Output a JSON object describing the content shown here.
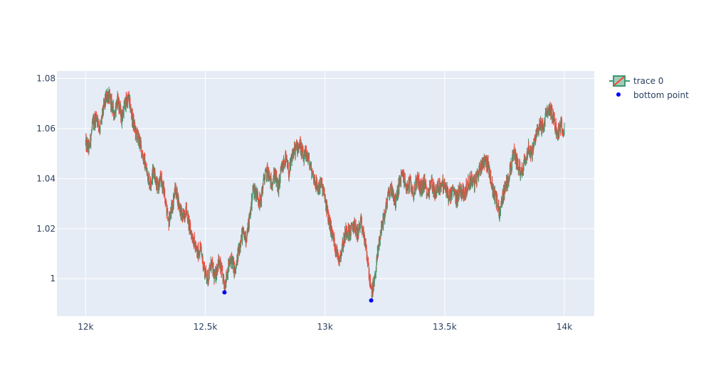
{
  "chart_data": {
    "type": "candlestick",
    "title": "",
    "xlabel": "",
    "ylabel": "",
    "xlim": [
      11880,
      14125
    ],
    "ylim": [
      0.985,
      1.083
    ],
    "x_ticks": [
      {
        "value": 12000,
        "label": "12k"
      },
      {
        "value": 12500,
        "label": "12.5k"
      },
      {
        "value": 13000,
        "label": "13k"
      },
      {
        "value": 13500,
        "label": "13.5k"
      },
      {
        "value": 14000,
        "label": "14k"
      }
    ],
    "y_ticks": [
      {
        "value": 1.0,
        "label": "1"
      },
      {
        "value": 1.02,
        "label": "1.02"
      },
      {
        "value": 1.04,
        "label": "1.04"
      },
      {
        "value": 1.06,
        "label": "1.06"
      },
      {
        "value": 1.08,
        "label": "1.08"
      }
    ],
    "grid": true,
    "legend_position": "top-right",
    "colors": {
      "plot_bg": "#e5ecf6",
      "grid": "#ffffff",
      "increasing": "#3d9970",
      "decreasing": "#ff4136",
      "bottom_point": "#0000ff",
      "text": "#2a3f5f"
    },
    "series": [
      {
        "name": "trace 0",
        "kind": "candlestick",
        "x_start": 12000,
        "x_end": 14000,
        "path": [
          [
            12000,
            1.054
          ],
          [
            12015,
            1.052
          ],
          [
            12030,
            1.062
          ],
          [
            12045,
            1.065
          ],
          [
            12060,
            1.06
          ],
          [
            12075,
            1.068
          ],
          [
            12090,
            1.074
          ],
          [
            12105,
            1.071
          ],
          [
            12120,
            1.066
          ],
          [
            12135,
            1.072
          ],
          [
            12150,
            1.064
          ],
          [
            12165,
            1.07
          ],
          [
            12180,
            1.072
          ],
          [
            12195,
            1.064
          ],
          [
            12210,
            1.058
          ],
          [
            12225,
            1.055
          ],
          [
            12240,
            1.049
          ],
          [
            12255,
            1.043
          ],
          [
            12270,
            1.038
          ],
          [
            12285,
            1.044
          ],
          [
            12300,
            1.036
          ],
          [
            12315,
            1.04
          ],
          [
            12330,
            1.034
          ],
          [
            12345,
            1.022
          ],
          [
            12360,
            1.028
          ],
          [
            12375,
            1.036
          ],
          [
            12390,
            1.03
          ],
          [
            12405,
            1.024
          ],
          [
            12420,
            1.028
          ],
          [
            12435,
            1.02
          ],
          [
            12450,
            1.016
          ],
          [
            12465,
            1.01
          ],
          [
            12480,
            1.012
          ],
          [
            12495,
            1.004
          ],
          [
            12510,
            1.0
          ],
          [
            12525,
            1.006
          ],
          [
            12540,
            1.0
          ],
          [
            12555,
            1.007
          ],
          [
            12570,
            1.002
          ],
          [
            12580,
            0.997
          ],
          [
            12595,
            1.004
          ],
          [
            12610,
            1.008
          ],
          [
            12625,
            1.002
          ],
          [
            12640,
            1.012
          ],
          [
            12655,
            1.018
          ],
          [
            12670,
            1.016
          ],
          [
            12685,
            1.024
          ],
          [
            12700,
            1.036
          ],
          [
            12715,
            1.034
          ],
          [
            12730,
            1.03
          ],
          [
            12745,
            1.04
          ],
          [
            12760,
            1.043
          ],
          [
            12775,
            1.038
          ],
          [
            12790,
            1.042
          ],
          [
            12805,
            1.036
          ],
          [
            12820,
            1.044
          ],
          [
            12835,
            1.048
          ],
          [
            12850,
            1.042
          ],
          [
            12865,
            1.05
          ],
          [
            12880,
            1.052
          ],
          [
            12895,
            1.054
          ],
          [
            12910,
            1.048
          ],
          [
            12925,
            1.05
          ],
          [
            12940,
            1.044
          ],
          [
            12955,
            1.04
          ],
          [
            12970,
            1.036
          ],
          [
            12985,
            1.038
          ],
          [
            13000,
            1.032
          ],
          [
            13015,
            1.024
          ],
          [
            13030,
            1.018
          ],
          [
            13045,
            1.012
          ],
          [
            13060,
            1.008
          ],
          [
            13075,
            1.014
          ],
          [
            13090,
            1.02
          ],
          [
            13105,
            1.018
          ],
          [
            13120,
            1.022
          ],
          [
            13135,
            1.018
          ],
          [
            13150,
            1.022
          ],
          [
            13165,
            1.016
          ],
          [
            13180,
            1.006
          ],
          [
            13193,
            0.994
          ],
          [
            13205,
            0.998
          ],
          [
            13220,
            1.01
          ],
          [
            13235,
            1.02
          ],
          [
            13250,
            1.026
          ],
          [
            13265,
            1.034
          ],
          [
            13280,
            1.036
          ],
          [
            13295,
            1.03
          ],
          [
            13310,
            1.038
          ],
          [
            13325,
            1.042
          ],
          [
            13340,
            1.036
          ],
          [
            13355,
            1.038
          ],
          [
            13370,
            1.034
          ],
          [
            13385,
            1.04
          ],
          [
            13400,
            1.036
          ],
          [
            13415,
            1.038
          ],
          [
            13430,
            1.034
          ],
          [
            13445,
            1.039
          ],
          [
            13460,
            1.034
          ],
          [
            13475,
            1.037
          ],
          [
            13490,
            1.038
          ],
          [
            13505,
            1.036
          ],
          [
            13520,
            1.032
          ],
          [
            13535,
            1.035
          ],
          [
            13550,
            1.032
          ],
          [
            13565,
            1.036
          ],
          [
            13580,
            1.034
          ],
          [
            13595,
            1.037
          ],
          [
            13610,
            1.04
          ],
          [
            13625,
            1.038
          ],
          [
            13640,
            1.042
          ],
          [
            13655,
            1.046
          ],
          [
            13670,
            1.048
          ],
          [
            13685,
            1.044
          ],
          [
            13700,
            1.036
          ],
          [
            13715,
            1.032
          ],
          [
            13730,
            1.026
          ],
          [
            13745,
            1.034
          ],
          [
            13760,
            1.038
          ],
          [
            13775,
            1.044
          ],
          [
            13790,
            1.05
          ],
          [
            13805,
            1.046
          ],
          [
            13820,
            1.042
          ],
          [
            13835,
            1.048
          ],
          [
            13850,
            1.052
          ],
          [
            13865,
            1.05
          ],
          [
            13880,
            1.056
          ],
          [
            13895,
            1.062
          ],
          [
            13910,
            1.06
          ],
          [
            13925,
            1.066
          ],
          [
            13940,
            1.068
          ],
          [
            13955,
            1.064
          ],
          [
            13970,
            1.058
          ],
          [
            13985,
            1.061
          ],
          [
            14000,
            1.06
          ]
        ]
      },
      {
        "name": "bottom point",
        "kind": "scatter",
        "x": [
          12580,
          13193
        ],
        "y": [
          0.9945,
          0.9913
        ]
      }
    ]
  }
}
